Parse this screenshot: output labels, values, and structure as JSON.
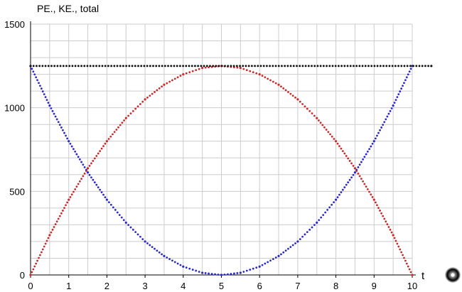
{
  "chart_data": {
    "type": "scatter",
    "title": "",
    "ylabel": "PE., KE., total",
    "xlabel": "t",
    "xlim": [
      0,
      10
    ],
    "ylim": [
      0,
      1500
    ],
    "xticks": [
      "0",
      "1",
      "2",
      "3",
      "4",
      "5",
      "6",
      "7",
      "8",
      "9",
      "10"
    ],
    "yticks": [
      "0",
      "500",
      "1000",
      "1500"
    ],
    "grid": true,
    "series": [
      {
        "color": "#cc2a2a",
        "x": [
          0,
          0.5,
          1,
          1.5,
          2,
          2.5,
          3,
          3.5,
          4,
          4.5,
          5,
          5.5,
          6,
          6.5,
          7,
          7.5,
          8,
          8.5,
          9,
          9.5,
          10
        ],
        "y": [
          0,
          238,
          450,
          638,
          800,
          938,
          1050,
          1138,
          1200,
          1238,
          1250,
          1238,
          1200,
          1138,
          1050,
          938,
          800,
          638,
          450,
          238,
          0
        ]
      },
      {
        "color": "#2a2acc",
        "x": [
          0,
          0.5,
          1,
          1.5,
          2,
          2.5,
          3,
          3.5,
          4,
          4.5,
          5,
          5.5,
          6,
          6.5,
          7,
          7.5,
          8,
          8.5,
          9,
          9.5,
          10
        ],
        "y": [
          1250,
          1013,
          800,
          613,
          450,
          313,
          200,
          113,
          50,
          13,
          0,
          13,
          50,
          113,
          200,
          313,
          450,
          613,
          800,
          1013,
          1250
        ]
      },
      {
        "color": "#111111",
        "x": [
          0,
          10.5
        ],
        "y": [
          1250,
          1250
        ]
      }
    ]
  },
  "colors": {
    "grid": "#cccccc",
    "axis": "#000000"
  },
  "knob_icon": "radio-knob-icon"
}
